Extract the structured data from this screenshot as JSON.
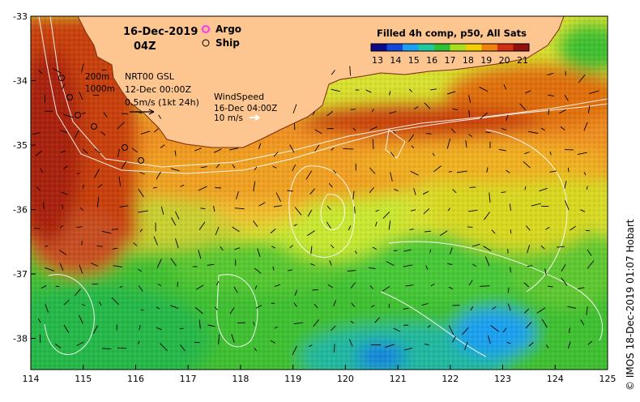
{
  "map": {
    "date": "16-Dec-2019",
    "time": "04Z",
    "legend_markers": [
      {
        "label": "Argo",
        "color": "#ff33ff",
        "icon": "argo-float-marker"
      },
      {
        "label": "Ship",
        "color": "#000000",
        "icon": "ship-track-marker"
      }
    ],
    "isobaths": [
      "200m",
      "1000m"
    ],
    "currents": {
      "source": "NRT00 GSL",
      "time": "12-Dec 00:00Z",
      "scale": "0.5m/s (1kt 24h)"
    },
    "wind": {
      "title": "WindSpeed",
      "time": "16-Dec 04:00Z",
      "scale": "10 m/s"
    },
    "colorbar": {
      "title": "Filled 4h comp, p50, All Sats",
      "ticks": [
        "13",
        "14",
        "15",
        "16",
        "17",
        "18",
        "19",
        "20",
        "21"
      ],
      "colors": [
        "#0a0a8a",
        "#1448d8",
        "#1aa0f0",
        "#20c8a0",
        "#30c030",
        "#a8e020",
        "#f0d000",
        "#f08010",
        "#d03010",
        "#901010"
      ]
    },
    "axes": {
      "lon_ticks": [
        "114",
        "115",
        "116",
        "117",
        "118",
        "119",
        "120",
        "121",
        "122",
        "123",
        "124",
        "125"
      ],
      "lat_ticks": [
        "-33",
        "-34",
        "-35",
        "-36",
        "-37",
        "-38"
      ]
    },
    "credit": "© IMOS 18-Dec-2019 01:07 Hobart",
    "land_color": "#fdc690"
  }
}
